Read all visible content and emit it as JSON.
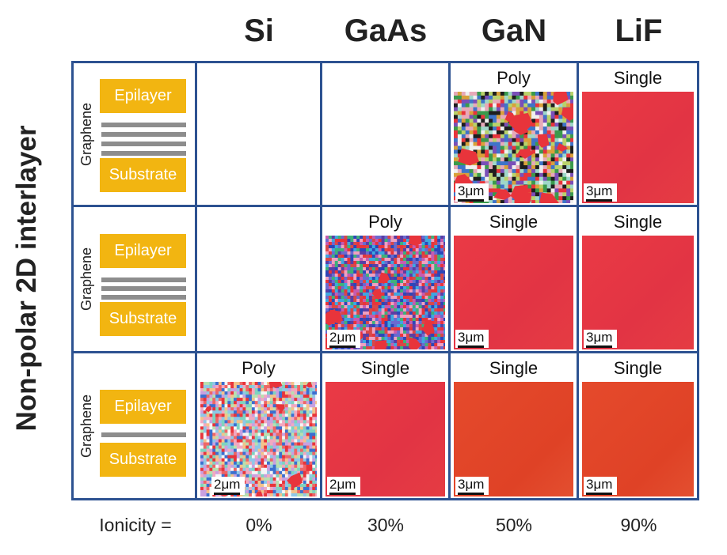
{
  "columns": [
    "Si",
    "GaAs",
    "GaN",
    "LiF"
  ],
  "side_title": "Non-polar 2D interlayer",
  "schematic": {
    "epilayer": "Epilayer",
    "substrate": "Substrate",
    "graphene": "Graphene"
  },
  "rows": [
    {
      "graphene_layers": 4,
      "cells": [
        {
          "label": "",
          "type": "empty",
          "scale": ""
        },
        {
          "label": "",
          "type": "empty",
          "scale": ""
        },
        {
          "label": "Poly",
          "type": "poly-coarse",
          "scale": "3μm"
        },
        {
          "label": "Single",
          "type": "single-red",
          "scale": "3μm"
        }
      ]
    },
    {
      "graphene_layers": 3,
      "cells": [
        {
          "label": "",
          "type": "empty",
          "scale": ""
        },
        {
          "label": "Poly",
          "type": "poly-fine",
          "scale": "2μm"
        },
        {
          "label": "Single",
          "type": "single-red",
          "scale": "3μm"
        },
        {
          "label": "Single",
          "type": "single-red",
          "scale": "3μm"
        }
      ]
    },
    {
      "graphene_layers": 1,
      "cells": [
        {
          "label": "Poly",
          "type": "poly-light",
          "scale": "2μm"
        },
        {
          "label": "Single",
          "type": "single-red",
          "scale": "2μm"
        },
        {
          "label": "Single",
          "type": "single-orange",
          "scale": "3μm"
        },
        {
          "label": "Single",
          "type": "single-orange",
          "scale": "3μm"
        }
      ]
    }
  ],
  "ionicity": {
    "label": "Ionicity =",
    "values": [
      "0%",
      "30%",
      "50%",
      "90%"
    ]
  }
}
